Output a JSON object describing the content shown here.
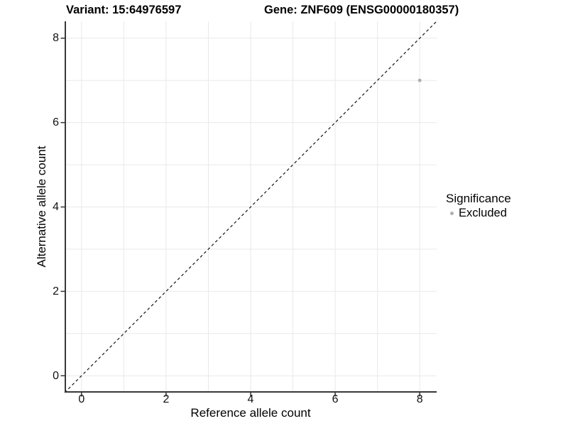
{
  "chart_data": {
    "type": "scatter",
    "titles": [
      "Variant: 15:64976597",
      "Gene: ZNF609 (ENSG00000180357)"
    ],
    "xlabel": "Reference allele count",
    "ylabel": "Alternative allele count",
    "xlim": [
      -0.4,
      8.4
    ],
    "ylim": [
      -0.4,
      8.4
    ],
    "xticks": [
      0,
      2,
      4,
      6,
      8
    ],
    "yticks": [
      0,
      2,
      4,
      6,
      8
    ],
    "grid": {
      "from": 0,
      "to": 8,
      "every": 1,
      "color": "#e9e9e9"
    },
    "axis_color": "#383838",
    "tick_color": "#333333",
    "reference_line": {
      "type": "diagonal",
      "equation": "y = x",
      "style": "dashed",
      "color": "#141414"
    },
    "series": [
      {
        "name": "Excluded",
        "color": "#b0b0b0",
        "points": [
          {
            "x": 8,
            "y": 7
          }
        ]
      }
    ],
    "legend": {
      "title": "Significance",
      "position": "right",
      "items": [
        {
          "label": "Excluded",
          "color": "#b0b0b0"
        }
      ]
    }
  }
}
